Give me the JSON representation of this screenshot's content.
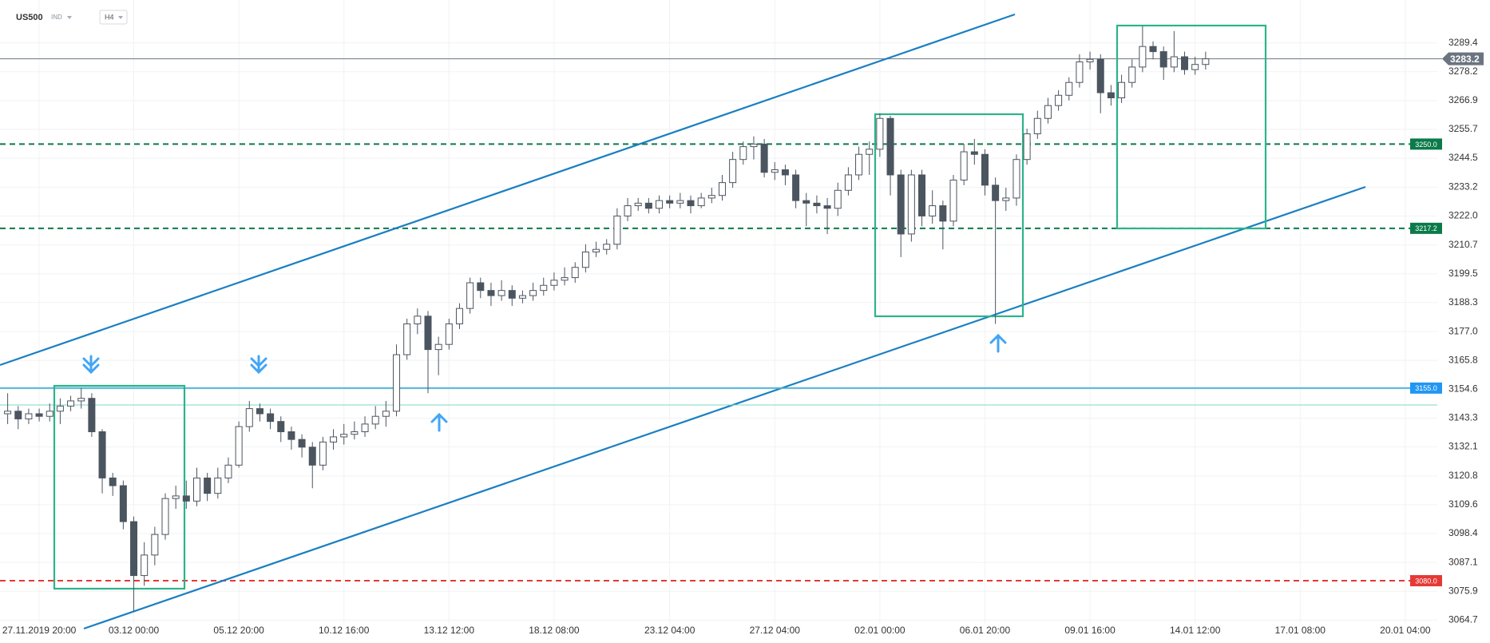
{
  "chart_data": {
    "type": "candlestick",
    "title": "US500",
    "subtitle": "IND",
    "timeframe": "H4",
    "categories": [
      null,
      null,
      null,
      "27.11.2019 20:00",
      null,
      null,
      null,
      null,
      null,
      null,
      null,
      null,
      "03.12 00:00",
      null,
      null,
      null,
      null,
      null,
      null,
      null,
      null,
      null,
      "05.12 20:00",
      null,
      null,
      null,
      null,
      null,
      null,
      null,
      null,
      null,
      "10.12 16:00",
      null,
      null,
      null,
      null,
      null,
      null,
      null,
      null,
      null,
      "13.12 12:00",
      null,
      null,
      null,
      null,
      null,
      null,
      null,
      null,
      null,
      "18.12 08:00",
      null,
      null,
      null,
      null,
      null,
      null,
      null,
      null,
      null,
      null,
      "23.12 04:00",
      null,
      null,
      null,
      null,
      null,
      null,
      null,
      null,
      null,
      "27.12 04:00",
      null,
      null,
      null,
      null,
      null,
      null,
      null,
      null,
      null,
      "02.01 00:00",
      null,
      null,
      null,
      null,
      null,
      null,
      null,
      null,
      null,
      "06.01 20:00",
      null,
      null,
      null,
      null,
      null,
      null,
      null,
      null,
      null,
      "09.01 16:00",
      null,
      null,
      null,
      null,
      null,
      null,
      null,
      null,
      null,
      "14.01 12:00",
      null,
      null,
      null,
      null,
      null,
      null,
      null,
      null,
      null,
      "17.01 08:00",
      null,
      null,
      null,
      null,
      null,
      null,
      null,
      null,
      null,
      "20.01 04:00"
    ],
    "open": [
      3145,
      3146,
      3143,
      3145,
      3144,
      3146,
      3148,
      3150,
      3151,
      3138,
      3120,
      3117,
      3103,
      3082,
      3090,
      3098,
      3112,
      3113,
      3111,
      3120,
      3114,
      3120,
      3125,
      3140,
      3147,
      3145,
      3142,
      3138,
      3135,
      3132,
      3125,
      3134,
      3136,
      3137,
      3138,
      3141,
      3144,
      3146,
      3168,
      3180,
      3183,
      3170,
      3172,
      3180,
      3186,
      3196,
      3193,
      3191,
      3193,
      3190,
      3191,
      3193,
      3195,
      3197,
      3198,
      3202,
      3208,
      3209,
      3211,
      3222,
      3226,
      3227,
      3225,
      3228,
      3227,
      3228,
      3226,
      3229,
      3230,
      3235,
      3244,
      3249,
      3250,
      3239,
      3240,
      3238,
      3228,
      3227,
      3226,
      3225,
      3232,
      3238,
      3246,
      3248,
      3260,
      3238,
      3215,
      3238,
      3222,
      3226,
      3220,
      3236,
      3247,
      3246,
      3234,
      3228,
      3229,
      3244,
      3254,
      3260,
      3265,
      3269,
      3274,
      3282,
      3283,
      3270,
      3268,
      3274,
      3280,
      3288,
      3286,
      3280,
      3284,
      3279,
      3281,
      null,
      null,
      null,
      null,
      null,
      null,
      null,
      null,
      null,
      null,
      null,
      null,
      null,
      null,
      null,
      null,
      null,
      null,
      null
    ],
    "high": [
      3153,
      3148,
      3147,
      3147,
      3149,
      3151,
      3152,
      3155,
      3153,
      3139,
      3122,
      3119,
      3105,
      3095,
      3101,
      3114,
      3117,
      3119,
      3124,
      3122,
      3124,
      3128,
      3142,
      3150,
      3149,
      3147,
      3144,
      3140,
      3137,
      3134,
      3136,
      3139,
      3141,
      3142,
      3144,
      3148,
      3150,
      3172,
      3182,
      3186,
      3185,
      3175,
      3182,
      3188,
      3198,
      3198,
      3196,
      3197,
      3195,
      3193,
      3196,
      3198,
      3200,
      3202,
      3204,
      3211,
      3212,
      3213,
      3225,
      3229,
      3229,
      3229,
      3230,
      3230,
      3231,
      3230,
      3231,
      3233,
      3238,
      3247,
      3251,
      3253,
      3252,
      3243,
      3242,
      3240,
      3231,
      3230,
      3229,
      3235,
      3241,
      3249,
      3251,
      3262,
      3261,
      3240,
      3240,
      3240,
      3232,
      3228,
      3238,
      3250,
      3252,
      3248,
      3237,
      3233,
      3246,
      3256,
      3263,
      3268,
      3271,
      3276,
      3285,
      3286,
      3285,
      3273,
      3277,
      3283,
      3296,
      3290,
      3288,
      3294,
      3286,
      3284,
      3286,
      null,
      null,
      null,
      null,
      null,
      null,
      null,
      null,
      null,
      null,
      null,
      null,
      null,
      null,
      null,
      null,
      null,
      null,
      null
    ],
    "low": [
      3141,
      3139,
      3141,
      3142,
      3142,
      3141,
      3146,
      3147,
      3136,
      3114,
      3113,
      3100,
      3068,
      3078,
      3086,
      3096,
      3108,
      3108,
      3109,
      3111,
      3112,
      3118,
      3124,
      3138,
      3142,
      3139,
      3134,
      3131,
      3128,
      3116,
      3123,
      3131,
      3133,
      3135,
      3136,
      3139,
      3140,
      3144,
      3166,
      3176,
      3153,
      3160,
      3170,
      3178,
      3184,
      3190,
      3187,
      3189,
      3187,
      3188,
      3189,
      3191,
      3193,
      3195,
      3196,
      3200,
      3206,
      3207,
      3209,
      3220,
      3224,
      3223,
      3223,
      3225,
      3225,
      3223,
      3225,
      3227,
      3228,
      3233,
      3242,
      3244,
      3237,
      3236,
      3234,
      3225,
      3218,
      3223,
      3215,
      3222,
      3230,
      3236,
      3238,
      3245,
      3230,
      3206,
      3212,
      3218,
      3219,
      3209,
      3218,
      3234,
      3242,
      3230,
      3180,
      3224,
      3226,
      3242,
      3252,
      3258,
      3263,
      3267,
      3272,
      3279,
      3262,
      3265,
      3266,
      3272,
      3278,
      3283,
      3275,
      3278,
      3277,
      3277,
      3279,
      null,
      null,
      null,
      null,
      null,
      null,
      null,
      null,
      null,
      null,
      null,
      null,
      null,
      null,
      null,
      null,
      null,
      null,
      null
    ],
    "close": [
      3146,
      3143,
      3145,
      3144,
      3146,
      3148,
      3150,
      3151,
      3138,
      3120,
      3117,
      3103,
      3082,
      3090,
      3098,
      3112,
      3113,
      3111,
      3120,
      3114,
      3120,
      3125,
      3140,
      3147,
      3145,
      3142,
      3138,
      3135,
      3132,
      3125,
      3134,
      3136,
      3137,
      3138,
      3141,
      3144,
      3146,
      3168,
      3180,
      3183,
      3170,
      3172,
      3180,
      3186,
      3196,
      3193,
      3191,
      3193,
      3190,
      3191,
      3193,
      3195,
      3197,
      3198,
      3202,
      3208,
      3209,
      3211,
      3222,
      3226,
      3227,
      3225,
      3228,
      3227,
      3228,
      3226,
      3229,
      3230,
      3235,
      3244,
      3249,
      3250,
      3239,
      3240,
      3238,
      3228,
      3227,
      3226,
      3225,
      3232,
      3238,
      3246,
      3248,
      3260,
      3238,
      3215,
      3238,
      3222,
      3226,
      3220,
      3236,
      3247,
      3246,
      3234,
      3228,
      3229,
      3244,
      3254,
      3260,
      3265,
      3269,
      3274,
      3282,
      3283,
      3270,
      3268,
      3274,
      3280,
      3288,
      3286,
      3280,
      3284,
      3279,
      3281,
      3283.2,
      null,
      null,
      null,
      null,
      null,
      null,
      null,
      null,
      null,
      null,
      null,
      null,
      null,
      null,
      null,
      null,
      null,
      null,
      null
    ],
    "up_color": "#ffffff",
    "down_color": "#4b5560",
    "edge_color": "#4b5560",
    "ylim": [
      3057.3,
      3306.1
    ],
    "yticks": [
      3289.4,
      3278.2,
      3266.9,
      3255.7,
      3244.5,
      3233.2,
      {
        "value": 3222,
        "label": "3222.0"
      },
      3210.7,
      3199.5,
      3188.3,
      {
        "value": 3177,
        "label": "3177.0"
      },
      3165.8,
      3154.6,
      3143.3,
      3132.1,
      3120.8,
      3109.6,
      3098.4,
      3087.1,
      3075.9,
      3064.7
    ],
    "grid": true,
    "levels": [
      {
        "value": 3283.2,
        "color": "#6b7480",
        "dashed": false,
        "badge": "axis"
      },
      {
        "value": 3250,
        "label": "3250.0",
        "color": "#0b7a4a",
        "dashed": true,
        "badge": "plot"
      },
      {
        "value": 3217.2,
        "color": "#0b7a4a",
        "dashed": true,
        "badge": "plot"
      },
      {
        "value": 3155,
        "label": "3155.0",
        "color": "#2196f3",
        "dashed": false,
        "badge": "plot"
      },
      {
        "value": 3080,
        "label": "3080.0",
        "color": "#e53935",
        "dashed": true,
        "badge": "plot"
      }
    ]
  }
}
